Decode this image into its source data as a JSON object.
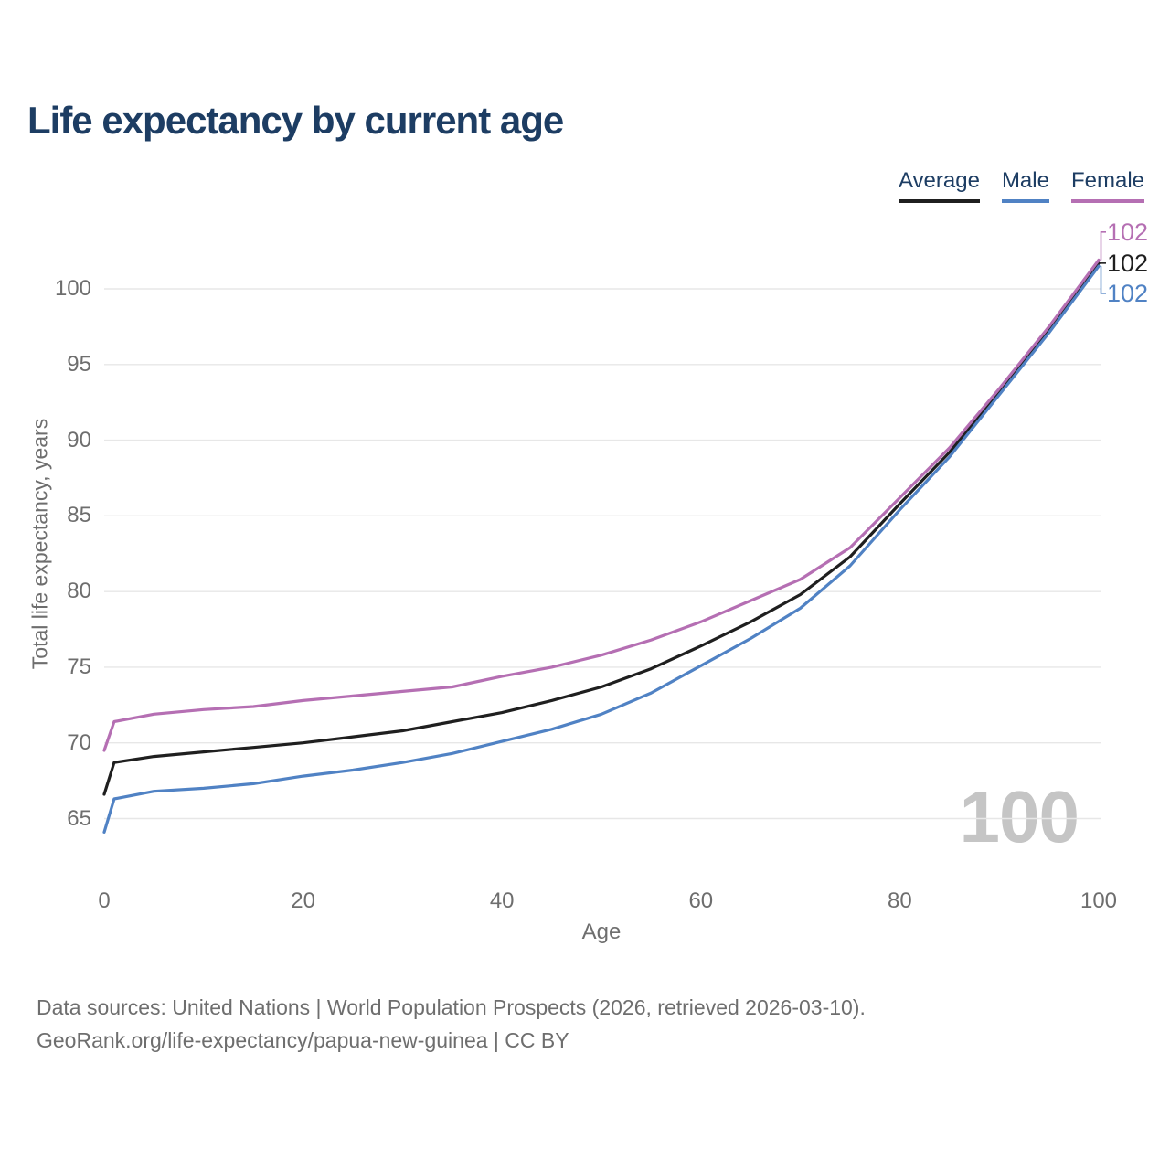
{
  "title": "Life expectancy by current age",
  "legend": [
    {
      "label": "Average",
      "color": "#1f1f1f"
    },
    {
      "label": "Male",
      "color": "#5082c4"
    },
    {
      "label": "Female",
      "color": "#b56fb3"
    }
  ],
  "y_axis": {
    "title": "Total life expectancy, years",
    "ticks": [
      65,
      70,
      75,
      80,
      85,
      90,
      95,
      100
    ]
  },
  "x_axis": {
    "title": "Age",
    "ticks": [
      0,
      20,
      40,
      60,
      80,
      100
    ]
  },
  "end_labels": {
    "Female": "102",
    "Average": "102",
    "Male": "102"
  },
  "watermark": "100",
  "footer": {
    "line1": "Data sources: United Nations | World Population Prospects (2026, retrieved 2026-03-10).",
    "line2": "GeoRank.org/life-expectancy/papua-new-guinea | CC BY"
  },
  "chart_data": {
    "type": "line",
    "title": "Life expectancy by current age",
    "xlabel": "Age",
    "ylabel": "Total life expectancy, years",
    "xlim": [
      0,
      100
    ],
    "ylim": [
      63.5,
      103
    ],
    "grid": "horizontal",
    "legend_position": "top-right",
    "x": [
      0,
      1,
      5,
      10,
      15,
      20,
      25,
      30,
      35,
      40,
      45,
      50,
      55,
      60,
      65,
      70,
      75,
      80,
      85,
      90,
      95,
      100
    ],
    "series": [
      {
        "name": "Average",
        "color": "#1f1f1f",
        "end_label": "102",
        "values": [
          66.6,
          68.7,
          69.1,
          69.4,
          69.7,
          70.0,
          70.4,
          70.8,
          71.4,
          72.0,
          72.8,
          73.7,
          74.9,
          76.4,
          78.0,
          79.8,
          82.3,
          85.8,
          89.2,
          93.2,
          97.3,
          101.7
        ]
      },
      {
        "name": "Male",
        "color": "#5082c4",
        "end_label": "102",
        "values": [
          64.1,
          66.3,
          66.8,
          67.0,
          67.3,
          67.8,
          68.2,
          68.7,
          69.3,
          70.1,
          70.9,
          71.9,
          73.3,
          75.1,
          76.9,
          78.9,
          81.7,
          85.4,
          88.9,
          93.0,
          97.1,
          101.5
        ]
      },
      {
        "name": "Female",
        "color": "#b56fb3",
        "end_label": "102",
        "values": [
          69.5,
          71.4,
          71.9,
          72.2,
          72.4,
          72.8,
          73.1,
          73.4,
          73.7,
          74.4,
          75.0,
          75.8,
          76.8,
          78.0,
          79.4,
          80.8,
          82.9,
          86.2,
          89.5,
          93.4,
          97.5,
          101.9
        ]
      }
    ]
  }
}
